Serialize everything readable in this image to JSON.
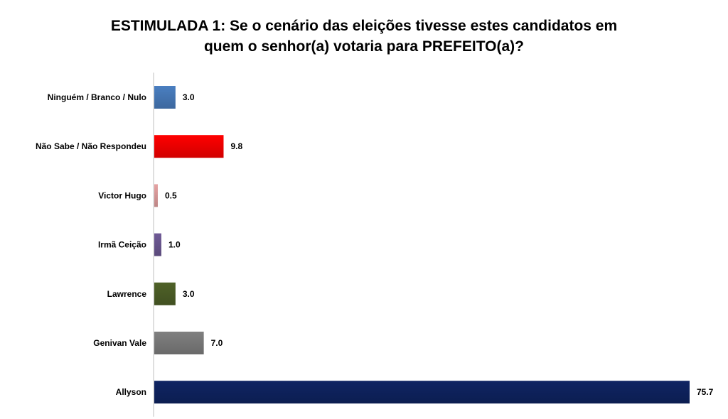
{
  "chart_data": {
    "type": "bar",
    "orientation": "horizontal",
    "title_line1": "ESTIMULADA 1: Se o cenário das eleições tivesse estes candidatos em",
    "title_line2": "quem o senhor(a) votaria para PREFEITO(a)?",
    "xlabel": "",
    "ylabel": "",
    "grid": false,
    "legend": "none",
    "categories": [
      "Ninguém / Branco / Nulo",
      "Não Sabe / Não Respondeu",
      "Victor Hugo",
      "Irmã Ceição",
      "Lawrence",
      "Genivan Vale",
      "Allyson"
    ],
    "values": [
      3.0,
      9.8,
      0.5,
      1.0,
      3.0,
      7.0,
      75.7
    ],
    "value_labels": [
      "3.0",
      "9.8",
      "0.5",
      "1.0",
      "3.0",
      "7.0",
      "75.7"
    ],
    "colors": [
      "#4a7fc1",
      "#ff0000",
      "#e6a3a3",
      "#6f5a96",
      "#4f6228",
      "#808080",
      "#0f2463"
    ],
    "xlim": [
      0,
      75.7
    ]
  }
}
